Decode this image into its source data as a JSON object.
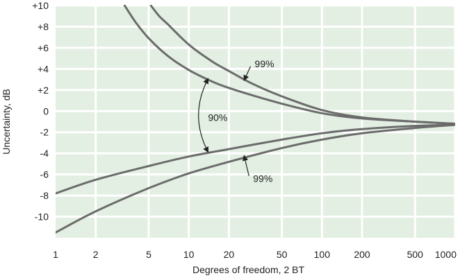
{
  "chart_data": {
    "type": "line",
    "title": "",
    "xlabel": "Degrees of freedom, 2 BT",
    "ylabel": "Uncertainty, dB",
    "x_scale": "log",
    "xlim": [
      1,
      1000
    ],
    "ylim": [
      -12,
      10
    ],
    "x_ticks": [
      1,
      2,
      5,
      10,
      20,
      50,
      100,
      200,
      500,
      1000
    ],
    "x_tick_labels": [
      "1",
      "2",
      "5",
      "10",
      "20",
      "50",
      "100",
      "200",
      "500",
      "1000"
    ],
    "y_ticks": [
      10,
      8,
      6,
      4,
      2,
      0,
      -2,
      -4,
      -6,
      -8,
      -10
    ],
    "y_tick_labels": [
      "+10",
      "+8",
      "+6",
      "+4",
      "+2",
      "0",
      "-2",
      "-4",
      "-6",
      "-8",
      "-10"
    ],
    "grid": true,
    "background_color": "#e3efe3",
    "line_color": "#6b6b6b",
    "series": [
      {
        "x": [
          3.3,
          4,
          5,
          7,
          10,
          15,
          20,
          30,
          50,
          100,
          200,
          500,
          1000
        ],
        "y": [
          10,
          8.4,
          6.9,
          5.2,
          3.9,
          2.8,
          2.2,
          1.5,
          0.7,
          -0.2,
          -0.7,
          -1.0,
          -1.2
        ]
      },
      {
        "x": [
          5.2,
          6,
          7,
          10,
          15,
          20,
          30,
          50,
          100,
          200,
          500,
          1000
        ],
        "y": [
          10,
          9,
          8.2,
          6.3,
          4.7,
          3.8,
          2.6,
          1.4,
          0.1,
          -0.6,
          -1.0,
          -1.2
        ]
      },
      {
        "x": [
          1,
          2,
          5,
          10,
          20,
          50,
          100,
          200,
          500,
          1000
        ],
        "y": [
          -7.8,
          -6.5,
          -5.2,
          -4.3,
          -3.6,
          -2.7,
          -2.1,
          -1.7,
          -1.4,
          -1.3
        ]
      },
      {
        "x": [
          1,
          2,
          5,
          10,
          20,
          50,
          100,
          200,
          500,
          1000
        ],
        "y": [
          -11.5,
          -9.5,
          -7.3,
          -5.9,
          -4.8,
          -3.5,
          -2.7,
          -2.1,
          -1.6,
          -1.3
        ]
      }
    ],
    "annotations": [
      {
        "text": "99%",
        "x": 37,
        "y": 4.5,
        "arrow_to": [
          26,
          2.9
        ]
      },
      {
        "text": "90%",
        "x": 16.5,
        "y": -0.6,
        "arrow_between": [
          [
            14,
            3.1
          ],
          [
            14,
            -3.9
          ]
        ]
      },
      {
        "text": "99%",
        "x": 36,
        "y": -6.4,
        "arrow_to": [
          26,
          -4.2
        ]
      }
    ]
  }
}
